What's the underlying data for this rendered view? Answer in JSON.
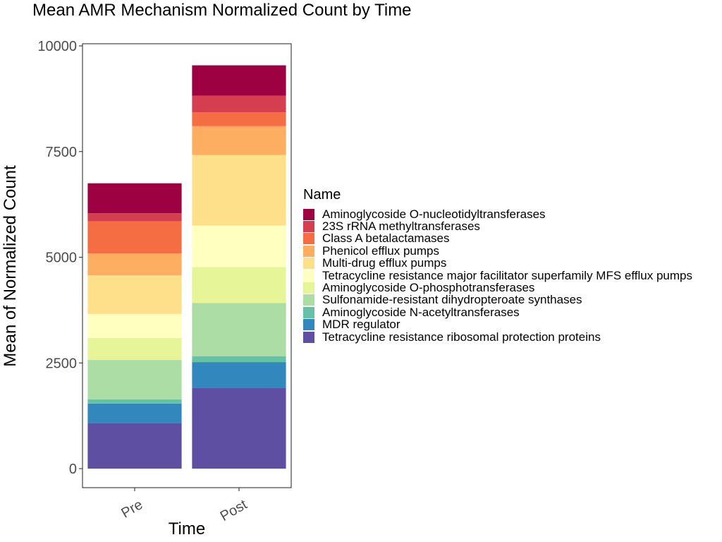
{
  "chart_data": {
    "type": "bar",
    "stacked": true,
    "title": "Mean AMR Mechanism Normalized Count by Time",
    "xlabel": "Time",
    "ylabel": "Mean of Normalized Count",
    "ylim": [
      -450,
      10050
    ],
    "yticks": [
      0,
      2500,
      5000,
      7500,
      10000
    ],
    "grid": false,
    "legend_position": "right",
    "legend_title": "Name",
    "categories": [
      "Pre",
      "Post"
    ],
    "series": [
      {
        "name": "Tetracycline resistance ribosomal protection proteins",
        "color": "#5E4FA2",
        "values": [
          1080,
          1910
        ]
      },
      {
        "name": "MDR regulator",
        "color": "#3288BD",
        "values": [
          460,
          610
        ]
      },
      {
        "name": "Aminoglycoside N-acetyltransferases",
        "color": "#66C2A5",
        "values": [
          100,
          140
        ]
      },
      {
        "name": "Sulfonamide-resistant dihydropteroate synthases",
        "color": "#ABDDA4",
        "values": [
          930,
          1260
        ]
      },
      {
        "name": "Aminoglycoside O-phosphotransferases",
        "color": "#E6F598",
        "values": [
          520,
          850
        ]
      },
      {
        "name": "Tetracycline resistance major facilitator superfamily MFS efflux pumps",
        "color": "#FFFFBF",
        "values": [
          570,
          980
        ]
      },
      {
        "name": "Multi-drug efflux pumps",
        "color": "#FEE08B",
        "values": [
          910,
          1670
        ]
      },
      {
        "name": "Phenicol efflux pumps",
        "color": "#FDAE61",
        "values": [
          520,
          680
        ]
      },
      {
        "name": "Class A betalactamases",
        "color": "#F46D43",
        "values": [
          760,
          330
        ]
      },
      {
        "name": "23S rRNA methyltransferases",
        "color": "#D53E4F",
        "values": [
          190,
          390
        ]
      },
      {
        "name": "Aminoglycoside O-nucleotidyltransferases",
        "color": "#9E0142",
        "values": [
          710,
          720
        ]
      }
    ]
  }
}
